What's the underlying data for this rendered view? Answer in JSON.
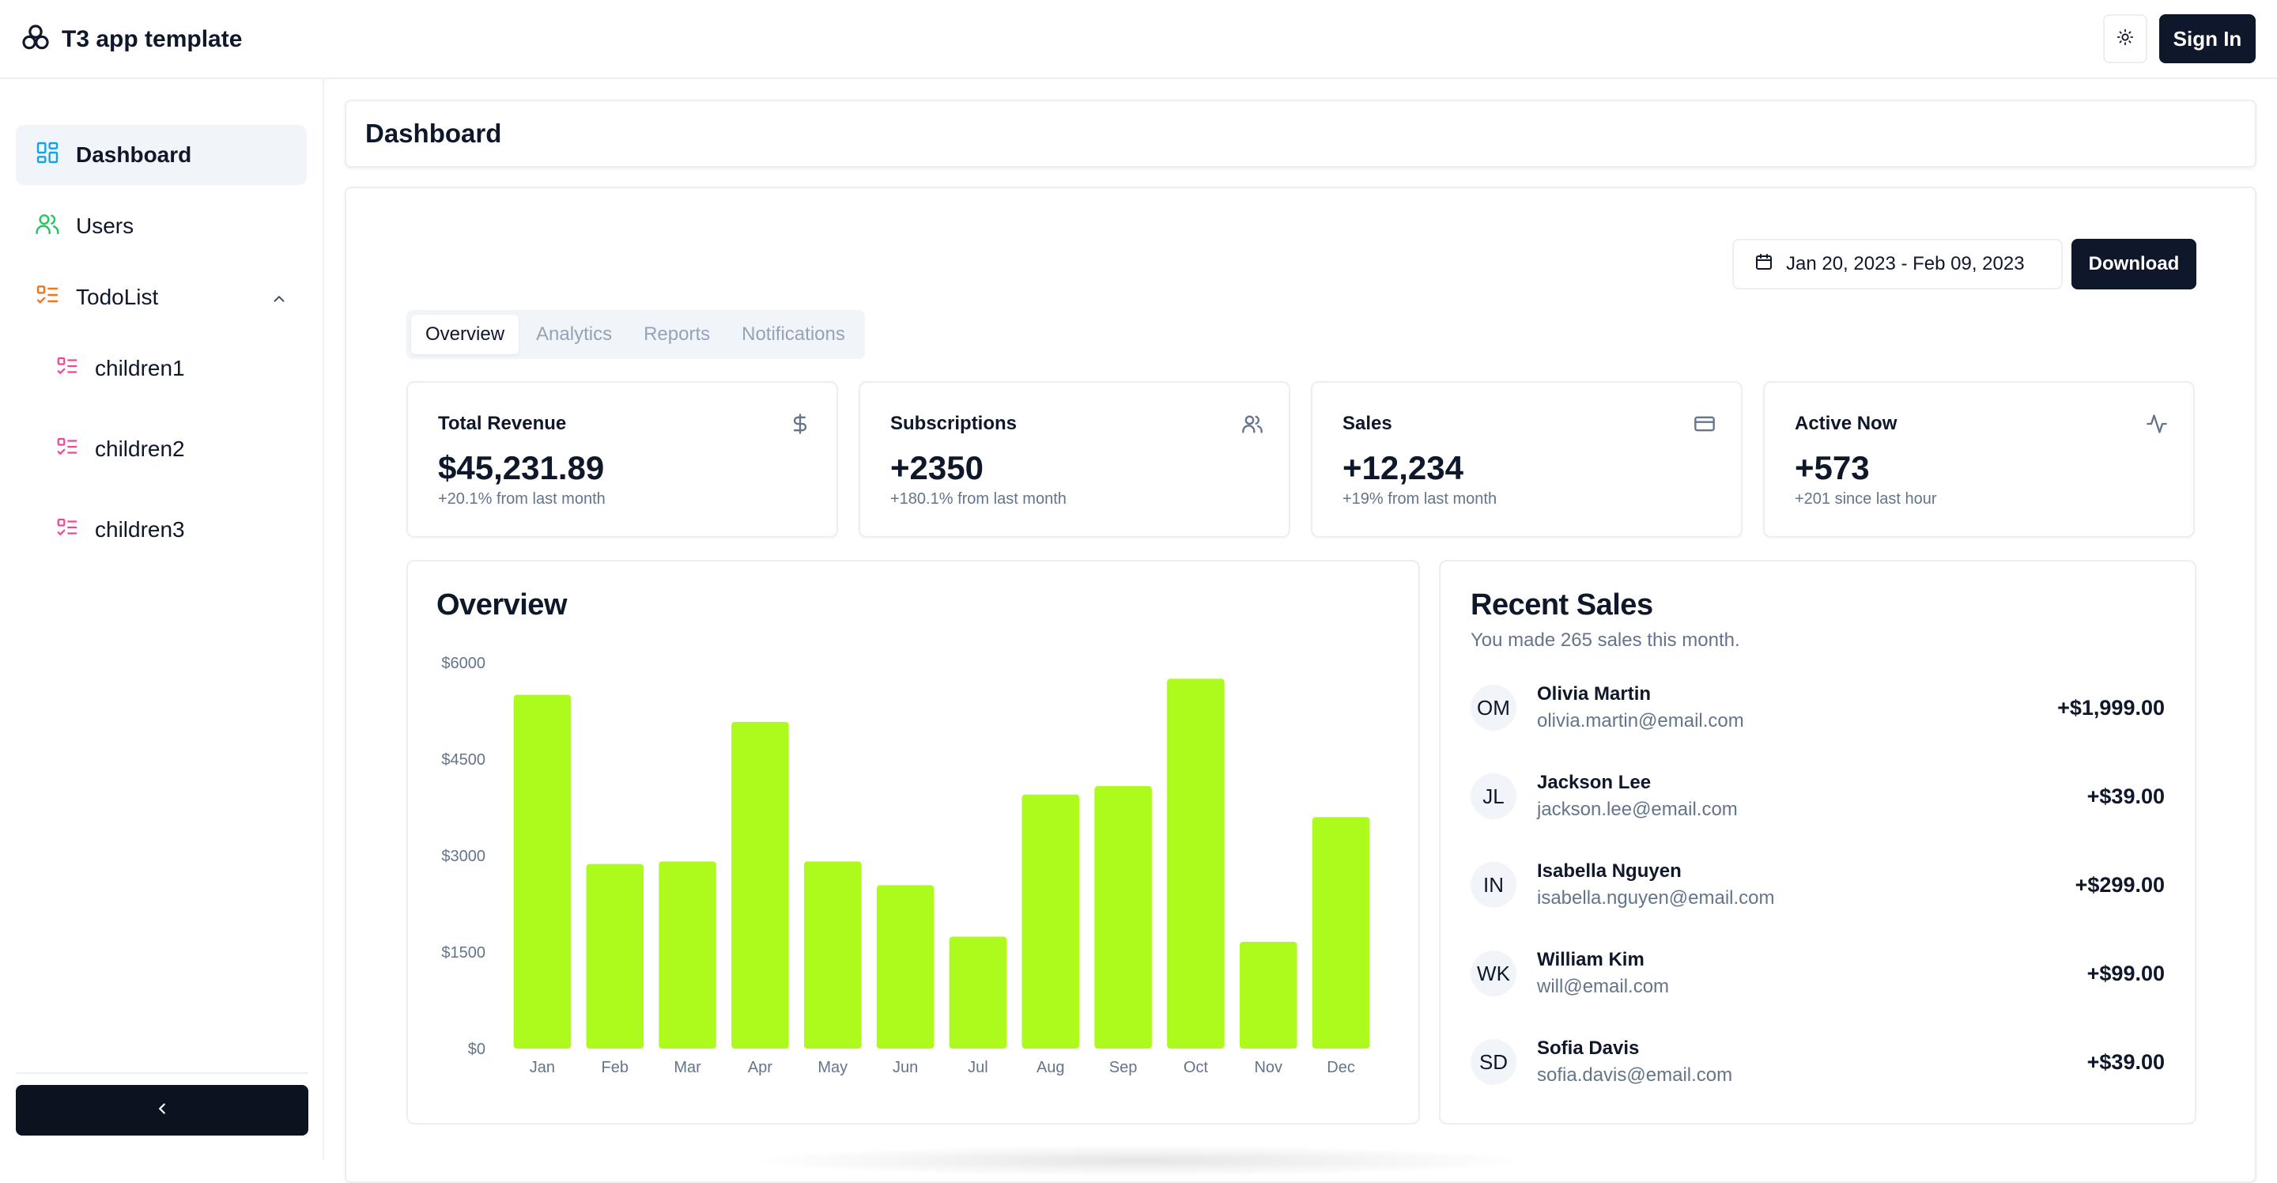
{
  "app": {
    "title": "T3 app template"
  },
  "header": {
    "signin_label": "Sign In"
  },
  "sidebar": {
    "items": [
      {
        "label": "Dashboard",
        "icon": "dashboard-icon"
      },
      {
        "label": "Users",
        "icon": "users-icon"
      },
      {
        "label": "TodoList",
        "icon": "todolist-icon"
      }
    ],
    "children": [
      {
        "label": "children1"
      },
      {
        "label": "children2"
      },
      {
        "label": "children3"
      }
    ]
  },
  "page": {
    "title": "Dashboard"
  },
  "toolbar": {
    "date_range": "Jan 20, 2023 - Feb 09, 2023",
    "download_label": "Download"
  },
  "tabs": [
    "Overview",
    "Analytics",
    "Reports",
    "Notifications"
  ],
  "stats": [
    {
      "title": "Total Revenue",
      "value": "$45,231.89",
      "sub": "+20.1% from last month",
      "icon": "dollar-icon"
    },
    {
      "title": "Subscriptions",
      "value": "+2350",
      "sub": "+180.1% from last month",
      "icon": "users-icon"
    },
    {
      "title": "Sales",
      "value": "+12,234",
      "sub": "+19% from last month",
      "icon": "credit-card-icon"
    },
    {
      "title": "Active Now",
      "value": "+573",
      "sub": "+201 since last hour",
      "icon": "activity-icon"
    }
  ],
  "overview": {
    "title": "Overview"
  },
  "recent_sales": {
    "title": "Recent Sales",
    "description": "You made 265 sales this month.",
    "rows": [
      {
        "initials": "OM",
        "name": "Olivia Martin",
        "email": "olivia.martin@email.com",
        "amount": "+$1,999.00"
      },
      {
        "initials": "JL",
        "name": "Jackson Lee",
        "email": "jackson.lee@email.com",
        "amount": "+$39.00"
      },
      {
        "initials": "IN",
        "name": "Isabella Nguyen",
        "email": "isabella.nguyen@email.com",
        "amount": "+$299.00"
      },
      {
        "initials": "WK",
        "name": "William Kim",
        "email": "will@email.com",
        "amount": "+$99.00"
      },
      {
        "initials": "SD",
        "name": "Sofia Davis",
        "email": "sofia.davis@email.com",
        "amount": "+$39.00"
      }
    ]
  },
  "colors": {
    "bar": "#adfa1d",
    "primary": "#0f172a",
    "muted": "#64748b",
    "border": "#eceef2"
  },
  "chart_data": {
    "type": "bar",
    "title": "",
    "categories": [
      "Jan",
      "Feb",
      "Mar",
      "Apr",
      "May",
      "Jun",
      "Jul",
      "Aug",
      "Sep",
      "Oct",
      "Nov",
      "Dec"
    ],
    "values": [
      5500,
      2870,
      2910,
      5080,
      2910,
      2540,
      1740,
      3950,
      4080,
      5750,
      1660,
      3600
    ],
    "yticks": [
      "$0",
      "$1500",
      "$3000",
      "$4500",
      "$6000"
    ],
    "ylim": [
      0,
      6000
    ],
    "grid": false,
    "legend": "none"
  }
}
